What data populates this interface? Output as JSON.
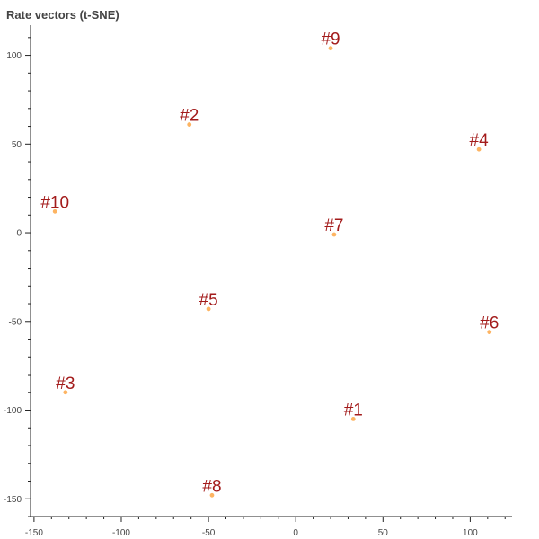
{
  "chart_data": {
    "type": "scatter",
    "title": "Rate vectors (t-SNE)",
    "xlabel": "",
    "ylabel": "",
    "xlim": [
      -152,
      124
    ],
    "ylim": [
      -160,
      117
    ],
    "xticks": [
      -150,
      -100,
      -50,
      0,
      50,
      100
    ],
    "yticks": [
      100,
      50,
      0,
      -50,
      -100,
      -150
    ],
    "grid": false,
    "legend": "none",
    "point_color": "#fdb462",
    "label_color": "#a31b1b",
    "axis_color": "#222222",
    "points": [
      {
        "label": "#9",
        "x": 20,
        "y": 104
      },
      {
        "label": "#2",
        "x": -61,
        "y": 61
      },
      {
        "label": "#4",
        "x": 105,
        "y": 47
      },
      {
        "label": "#10",
        "x": -138,
        "y": 12
      },
      {
        "label": "#7",
        "x": 22,
        "y": -1
      },
      {
        "label": "#5",
        "x": -50,
        "y": -43
      },
      {
        "label": "#6",
        "x": 111,
        "y": -56
      },
      {
        "label": "#3",
        "x": -132,
        "y": -90
      },
      {
        "label": "#1",
        "x": 33,
        "y": -105
      },
      {
        "label": "#8",
        "x": -48,
        "y": -148
      }
    ]
  }
}
